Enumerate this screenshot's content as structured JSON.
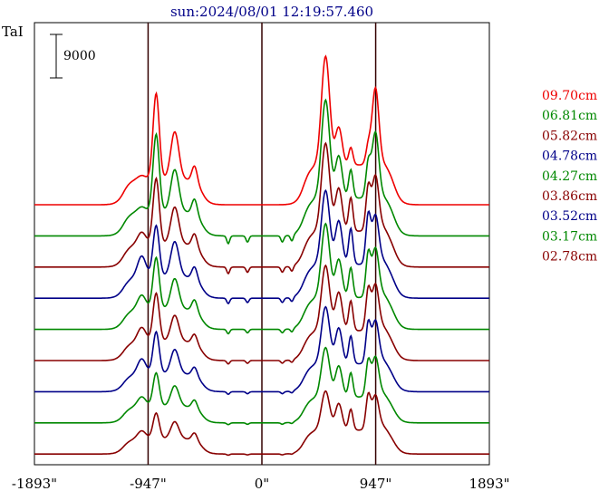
{
  "chart_data": {
    "type": "line",
    "title": "sun:2024/08/01 12:19:57.460",
    "ylabel": "TaI",
    "scale_bar_label": "9000",
    "xlim": [
      -1893,
      1893
    ],
    "x_ticks": [
      {
        "value": -1893,
        "label": "-1893\""
      },
      {
        "value": -947,
        "label": "-947\""
      },
      {
        "value": 0,
        "label": "0\""
      },
      {
        "value": 947,
        "label": "947\""
      },
      {
        "value": 1893,
        "label": "1893\""
      }
    ],
    "vertical_lines": [
      -947,
      0,
      947
    ],
    "series": [
      {
        "name": "09.70cm",
        "color": "#ee0000",
        "amp": [
          0.15,
          1.0,
          0.75,
          0.45,
          1.0,
          0.55,
          0.35,
          0.3,
          1.0,
          0.15
        ]
      },
      {
        "name": "06.81cm",
        "color": "#008800",
        "amp": [
          0.2,
          0.95,
          0.7,
          0.45,
          0.95,
          0.65,
          0.6,
          0.6,
          0.9,
          0.15
        ]
      },
      {
        "name": "05.82cm",
        "color": "#880000",
        "amp": [
          0.5,
          0.85,
          0.65,
          0.4,
          0.9,
          0.7,
          0.75,
          0.8,
          0.8,
          0.3
        ]
      },
      {
        "name": "04.78cm",
        "color": "#000088",
        "amp": [
          0.9,
          0.7,
          0.65,
          0.4,
          0.8,
          0.75,
          0.85,
          0.95,
          0.75,
          0.3
        ]
      },
      {
        "name": "04.27cm",
        "color": "#008800",
        "amp": [
          0.65,
          0.75,
          0.6,
          0.4,
          0.85,
          0.7,
          0.75,
          0.9,
          0.8,
          0.3
        ]
      },
      {
        "name": "03.86cm",
        "color": "#880000",
        "amp": [
          0.7,
          0.75,
          0.55,
          0.35,
          0.8,
          0.75,
          0.8,
          0.9,
          0.8,
          0.35
        ]
      },
      {
        "name": "03.52cm",
        "color": "#000088",
        "amp": [
          0.8,
          0.7,
          0.55,
          0.35,
          0.75,
          0.75,
          0.8,
          0.95,
          0.8,
          0.35
        ]
      },
      {
        "name": "03.17cm",
        "color": "#008800",
        "amp": [
          0.55,
          0.6,
          0.5,
          0.35,
          0.7,
          0.7,
          0.75,
          0.9,
          0.8,
          0.35
        ]
      },
      {
        "name": "02.78cm",
        "color": "#880000",
        "amp": [
          0.5,
          0.5,
          0.45,
          0.35,
          0.6,
          0.65,
          0.7,
          0.95,
          0.75,
          0.4
        ]
      }
    ]
  }
}
